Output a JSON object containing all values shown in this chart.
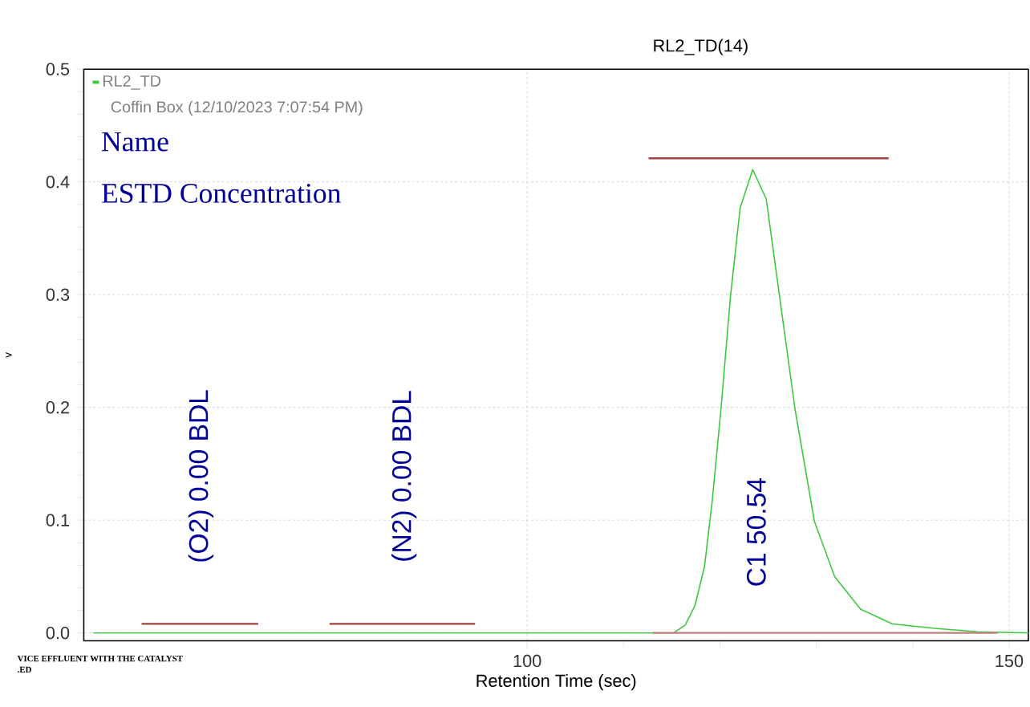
{
  "chart_data": {
    "type": "line",
    "title": "RL2_TD(14)",
    "xlabel": "Retention Time (sec)",
    "ylabel": "v",
    "xlim": [
      54,
      152
    ],
    "ylim": [
      -0.007,
      0.5
    ],
    "xticks": [
      100,
      150
    ],
    "yticks": [
      {
        "value": 0,
        "label": "0.0"
      },
      0.1,
      0.2,
      0.3,
      0.4,
      0.5
    ],
    "grid": true,
    "legend": "top left",
    "series": [
      {
        "name": "RL2_TD",
        "color": "#3cc83c",
        "x": [
          55,
          115.2,
          116.4,
          117.4,
          118.4,
          119.2,
          120.1,
          121.1,
          122.1,
          123.4,
          124.8,
          126.1,
          127.8,
          129.8,
          131.9,
          134.6,
          137.9,
          142.3,
          146.7,
          152
        ],
        "values": [
          0,
          0,
          0.007,
          0.024,
          0.059,
          0.117,
          0.198,
          0.299,
          0.377,
          0.411,
          0.385,
          0.304,
          0.198,
          0.099,
          0.05,
          0.021,
          0.008,
          0.004,
          0.001,
          0
        ]
      },
      {
        "color": "#a04040",
        "x": [
          60.0,
          72.1
        ],
        "values": [
          0.008,
          0.008
        ]
      },
      {
        "color": "#a04040",
        "x": [
          79.5,
          94.6
        ],
        "values": [
          0.008,
          0.008
        ]
      },
      {
        "color": "#a04040",
        "x": [
          112.6,
          137.5
        ],
        "values": [
          0.421,
          0.421
        ]
      },
      {
        "color": "#c08080",
        "x": [
          113.0,
          148.8
        ],
        "values": [
          0,
          0
        ]
      }
    ],
    "annotations": [
      "Coffin Box (12/10/2023 7:07:54 PM)",
      "Name",
      "ESTD Concentration",
      "(O2) 0.00 BDL",
      "(N2) 0.00 BDL",
      "C1 50.54",
      "VICE EFFLUENT WITH THE CATALYST",
      ".ED"
    ]
  }
}
